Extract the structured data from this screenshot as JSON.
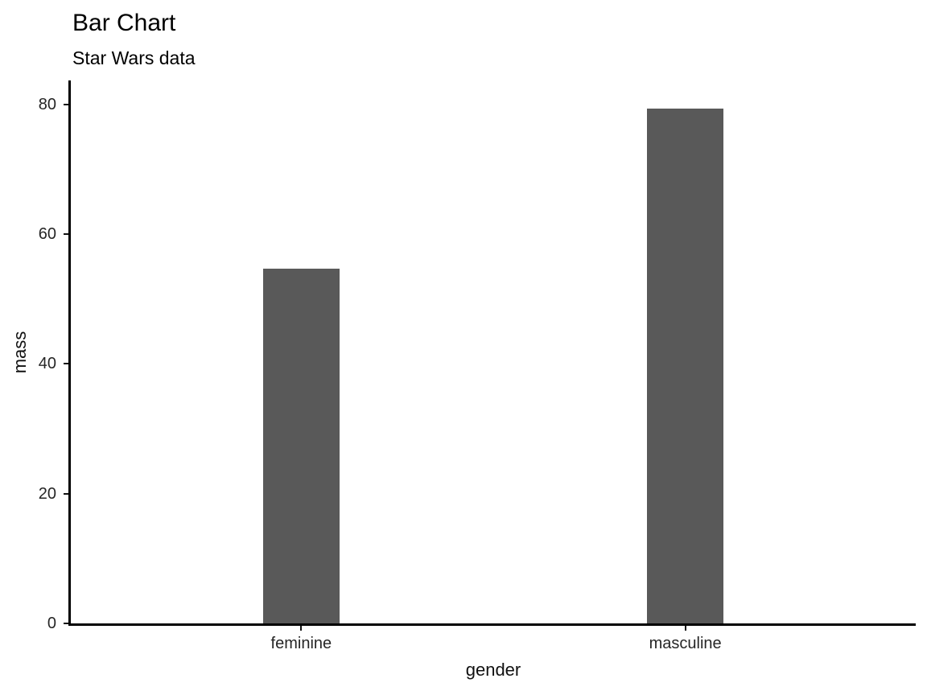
{
  "page": {
    "background": "#ffffff"
  },
  "chart_data": {
    "type": "bar",
    "title": "Bar Chart",
    "subtitle": "Star Wars data",
    "xlabel": "gender",
    "ylabel": "mass",
    "categories": [
      "feminine",
      "masculine"
    ],
    "values": [
      54.7,
      79.3
    ],
    "yticks": [
      0,
      20,
      40,
      60,
      80
    ],
    "ylim": [
      0,
      83.7
    ],
    "grid": false,
    "legend": false,
    "bar_width_units": 0.2,
    "colors": {
      "bar_fill": "#595959",
      "axis_line": "#000000",
      "title_text": "#000000",
      "tick_text": "#262626"
    }
  }
}
